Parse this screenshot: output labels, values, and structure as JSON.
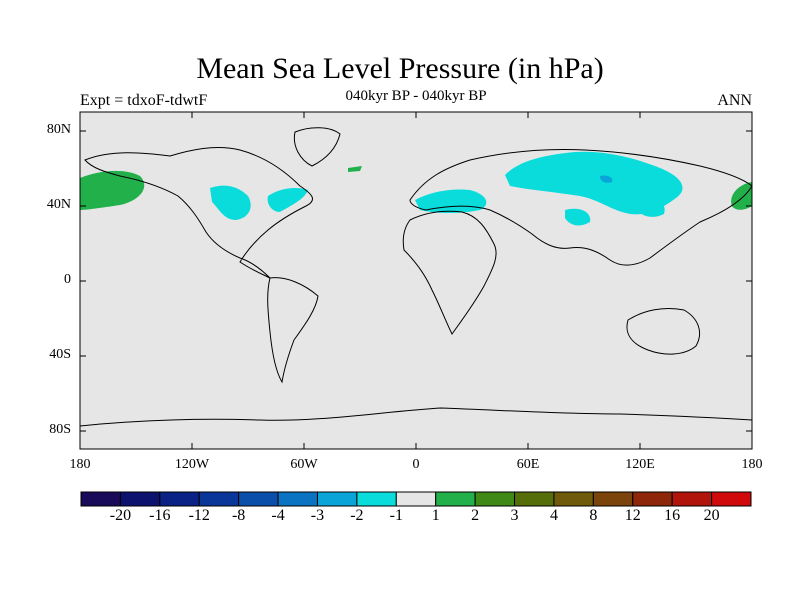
{
  "header": {
    "title": "Mean Sea Level Pressure (in hPa)",
    "left": "Expt = tdxoF-tdwtF",
    "center": "040kyr BP - 040kyr BP",
    "right": "ANN"
  },
  "axes": {
    "lat_labels": [
      "80N",
      "40N",
      "0",
      "40S",
      "80S"
    ],
    "lon_labels": [
      "180",
      "120W",
      "60W",
      "0",
      "60E",
      "120E",
      "180"
    ]
  },
  "colorbar": {
    "colors": [
      "#1a0a5a",
      "#0c126e",
      "#0a2286",
      "#0a369a",
      "#0a50aa",
      "#0a74c2",
      "#0aa4d8",
      "#0adcdc",
      "#e6e6e6",
      "#22b04a",
      "#3f8a16",
      "#566e0a",
      "#6e5a0a",
      "#7a440a",
      "#8e260a",
      "#b0140a",
      "#d00a0a"
    ],
    "labels": [
      "-20",
      "-16",
      "-12",
      "-8",
      "-4",
      "-3",
      "-2",
      "-1",
      "1",
      "2",
      "3",
      "4",
      "8",
      "12",
      "16",
      "20"
    ]
  },
  "map_colors": {
    "background": "#e6e6e6",
    "negative": "#0adcdc",
    "negative_strong": "#0aa4d8",
    "positive": "#22b04a"
  }
}
